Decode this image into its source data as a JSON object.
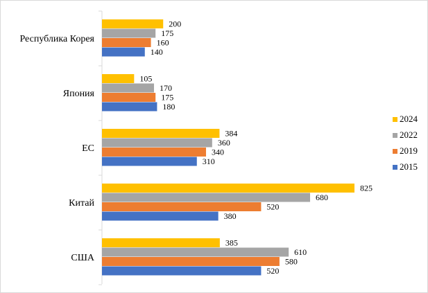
{
  "chart_data": {
    "type": "bar",
    "orientation": "horizontal",
    "title": "",
    "xlabel": "",
    "ylabel": "",
    "xlim": [
      0,
      825
    ],
    "grid": false,
    "legend_position": "right",
    "categories": [
      "Республика Корея",
      "Япония",
      "ЕС",
      "Китай",
      "США"
    ],
    "series": [
      {
        "name": "2024",
        "color": "#FFC000",
        "values": [
          200,
          105,
          384,
          825,
          385
        ]
      },
      {
        "name": "2022",
        "color": "#A5A5A5",
        "values": [
          175,
          170,
          360,
          680,
          610
        ]
      },
      {
        "name": "2019",
        "color": "#ED7D31",
        "values": [
          160,
          175,
          340,
          520,
          580
        ]
      },
      {
        "name": "2015",
        "color": "#4472C4",
        "values": [
          140,
          180,
          310,
          380,
          520
        ]
      }
    ]
  }
}
